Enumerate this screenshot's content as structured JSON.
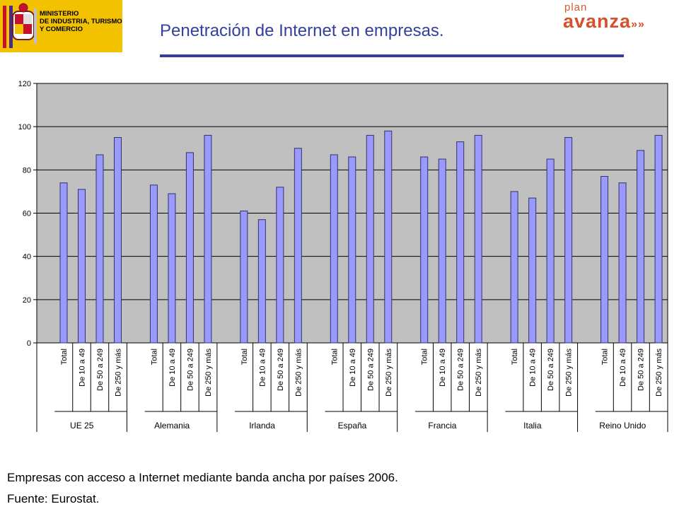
{
  "header": {
    "ministry_text": "MINISTERIO\nDE INDUSTRIA, TURISMO\nY COMERCIO",
    "title": "Penetración de Internet en empresas.",
    "plan_word": "plan",
    "avanza_word": "avanza",
    "avanza_suffix": "»»",
    "colors": {
      "title": "#3340a0",
      "logo_bg": "#f2c200",
      "avanza": "#d8502a"
    }
  },
  "chart_data": {
    "type": "bar",
    "categories": [
      "UE 25",
      "Alemania",
      "Irlanda",
      "España",
      "Francia",
      "Italia",
      "Reino Unido"
    ],
    "subcategories": [
      "Total",
      "De 10 a 49",
      "De 50 a 249",
      "De 250 y más"
    ],
    "values": [
      [
        74,
        71,
        87,
        95
      ],
      [
        73,
        69,
        88,
        96
      ],
      [
        61,
        57,
        72,
        90
      ],
      [
        87,
        86,
        96,
        98
      ],
      [
        86,
        85,
        93,
        96
      ],
      [
        70,
        67,
        85,
        95
      ],
      [
        77,
        74,
        89,
        96
      ]
    ],
    "ylim": [
      0,
      120
    ],
    "yticks": [
      0,
      20,
      40,
      60,
      80,
      100,
      120
    ],
    "grid": true,
    "legend": "none",
    "title": "",
    "xlabel": "",
    "ylabel": "",
    "colors": {
      "bar": "#9999ff",
      "plot_bg": "#c0c0c0",
      "bar_stroke": "#333366"
    }
  },
  "caption": {
    "line1": "Empresas con acceso a Internet mediante banda ancha por países 2006.",
    "line2": "Fuente: Eurostat."
  }
}
